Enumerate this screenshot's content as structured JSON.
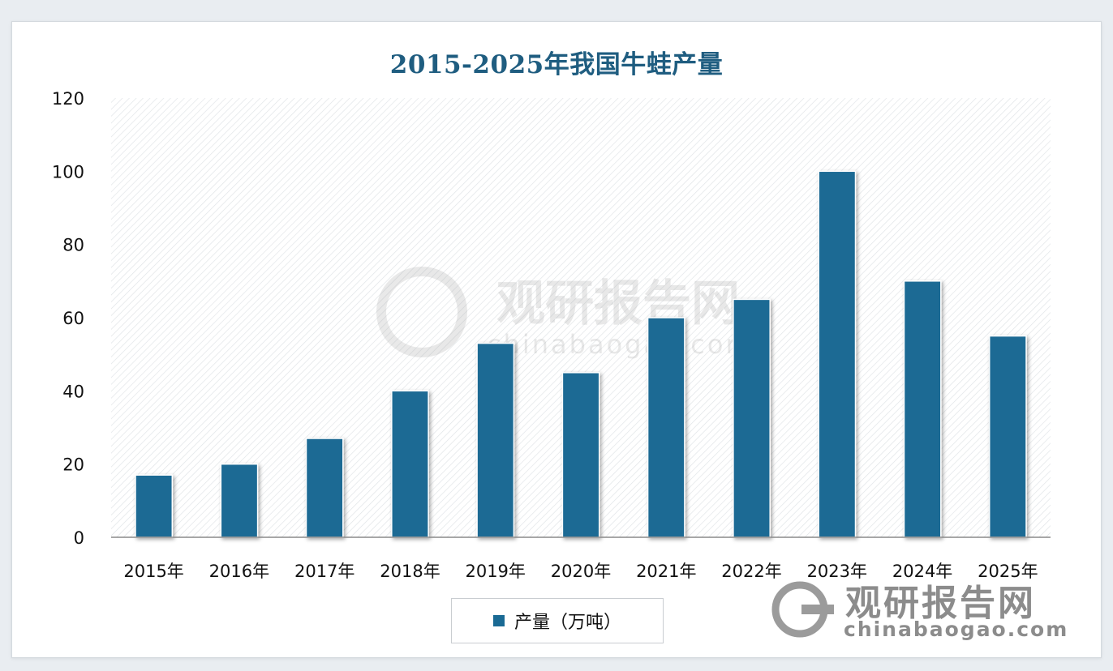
{
  "page": {
    "background": "#e9edf1"
  },
  "chart_data": {
    "type": "bar",
    "title": "2015-2025年我国牛蛙产量",
    "title_color": "#1f5d80",
    "categories": [
      "2015年",
      "2016年",
      "2017年",
      "2018年",
      "2019年",
      "2020年",
      "2021年",
      "2022年",
      "2023年",
      "2024年",
      "2025年"
    ],
    "series": [
      {
        "name": "产量（万吨）",
        "color": "#1a6a94",
        "values": [
          17,
          20,
          27,
          40,
          53,
          45,
          60,
          65,
          100,
          70,
          55
        ]
      }
    ],
    "ylim": [
      0,
      120
    ],
    "yticks": [
      "0",
      "20",
      "40",
      "60",
      "80",
      "100",
      "120"
    ],
    "xlabel": "",
    "ylabel": "",
    "grid": false,
    "plot_background": "hatched",
    "legend_position": "bottom"
  },
  "watermark": {
    "main": "观研报告网",
    "sub": "chinabaogao.com",
    "color": "#8c8c8c"
  }
}
